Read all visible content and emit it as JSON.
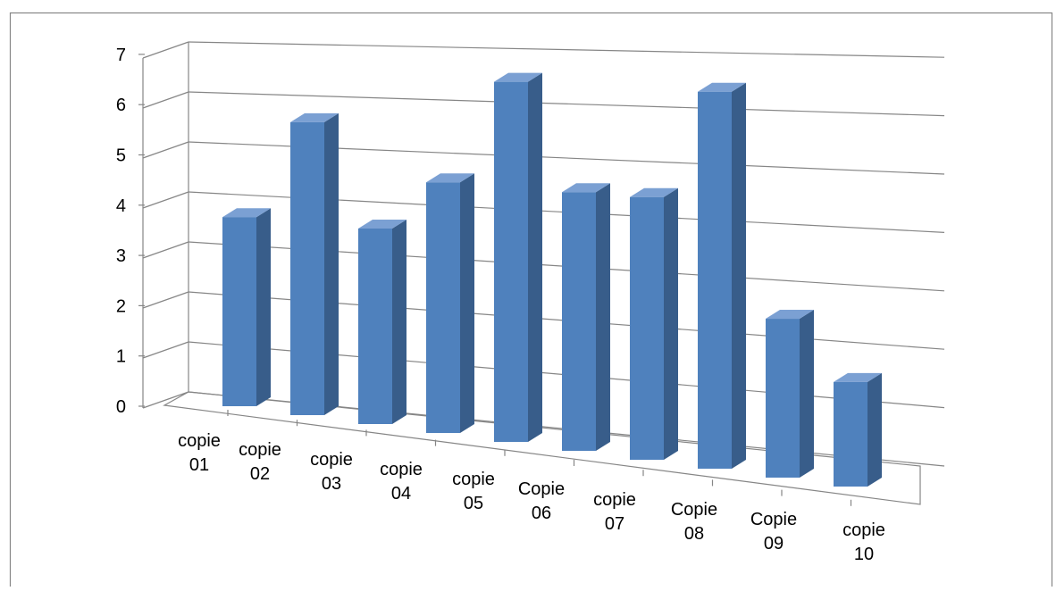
{
  "chart_data": {
    "type": "bar",
    "title": "",
    "xlabel": "",
    "ylabel": "",
    "ylim": [
      0,
      7
    ],
    "y_ticks": [
      "0",
      "1",
      "2",
      "3",
      "4",
      "5",
      "6",
      "7"
    ],
    "categories": [
      [
        "copie",
        "01"
      ],
      [
        "copie",
        "02"
      ],
      [
        "copie",
        "03"
      ],
      [
        "copie",
        "04"
      ],
      [
        "copie",
        "05"
      ],
      [
        "Copie",
        "06"
      ],
      [
        "copie",
        "07"
      ],
      [
        "Copie",
        "08"
      ],
      [
        "Copie",
        "09"
      ],
      [
        "copie",
        "10"
      ]
    ],
    "values": [
      4,
      6,
      4,
      5,
      7,
      5,
      5,
      7,
      3,
      2
    ],
    "grid": true,
    "legend": "none",
    "style": "3d-column",
    "colors": {
      "bar_front": "#4f81bd",
      "bar_side": "#385d8a",
      "bar_top": "#7ba0d3",
      "grid": "#868686",
      "frame": "#868686",
      "text": "#000000"
    }
  }
}
